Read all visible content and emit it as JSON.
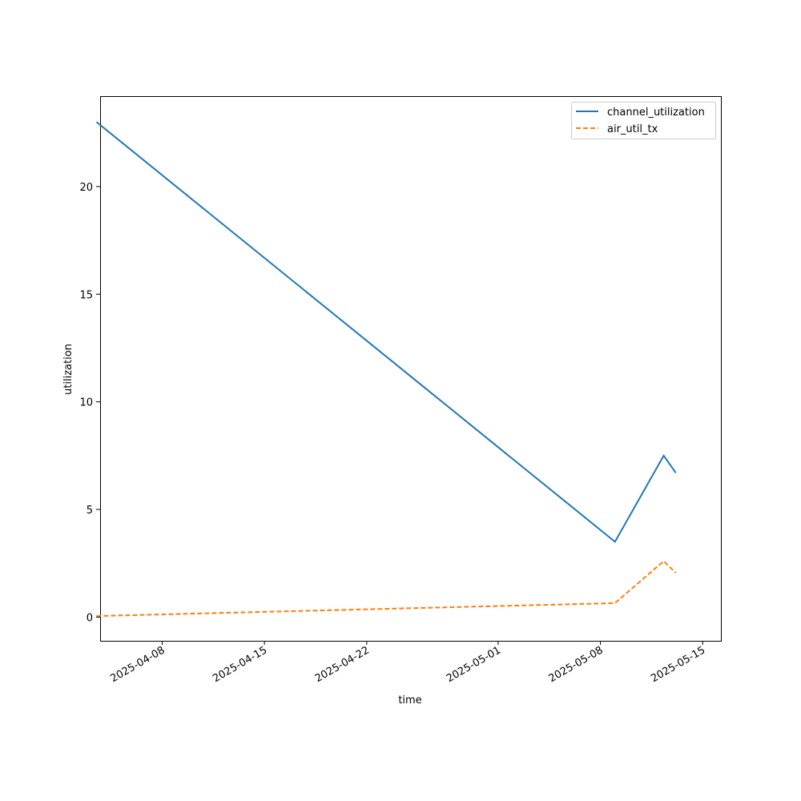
{
  "chart_data": {
    "type": "line",
    "title": "",
    "xlabel": "time",
    "ylabel": "utilization",
    "x_axis_type": "date",
    "xlim": [
      "2025-04-03",
      "2025-05-16"
    ],
    "ylim": [
      -1.1,
      24.2
    ],
    "x_ticks": [
      "2025-04-08",
      "2025-04-15",
      "2025-04-22",
      "2025-05-01",
      "2025-05-08",
      "2025-05-15"
    ],
    "y_ticks": [
      0,
      5,
      10,
      15,
      20
    ],
    "grid": false,
    "legend_position": "top-right",
    "series": [
      {
        "name": "channel_utilization",
        "color": "#1f77b4",
        "line_style": "solid",
        "points": [
          {
            "x": "2025-04-03T12:00",
            "y": 23.0
          },
          {
            "x": "2025-05-09T00:00",
            "y": 3.5
          },
          {
            "x": "2025-05-12T08:00",
            "y": 7.5
          },
          {
            "x": "2025-05-13T04:00",
            "y": 6.7
          }
        ]
      },
      {
        "name": "air_util_tx",
        "color": "#ff7f0e",
        "line_style": "dashed",
        "points": [
          {
            "x": "2025-04-03T12:00",
            "y": 0.05
          },
          {
            "x": "2025-05-09T00:00",
            "y": 0.65
          },
          {
            "x": "2025-05-12T08:00",
            "y": 2.6
          },
          {
            "x": "2025-05-13T04:00",
            "y": 2.05
          }
        ]
      }
    ]
  }
}
